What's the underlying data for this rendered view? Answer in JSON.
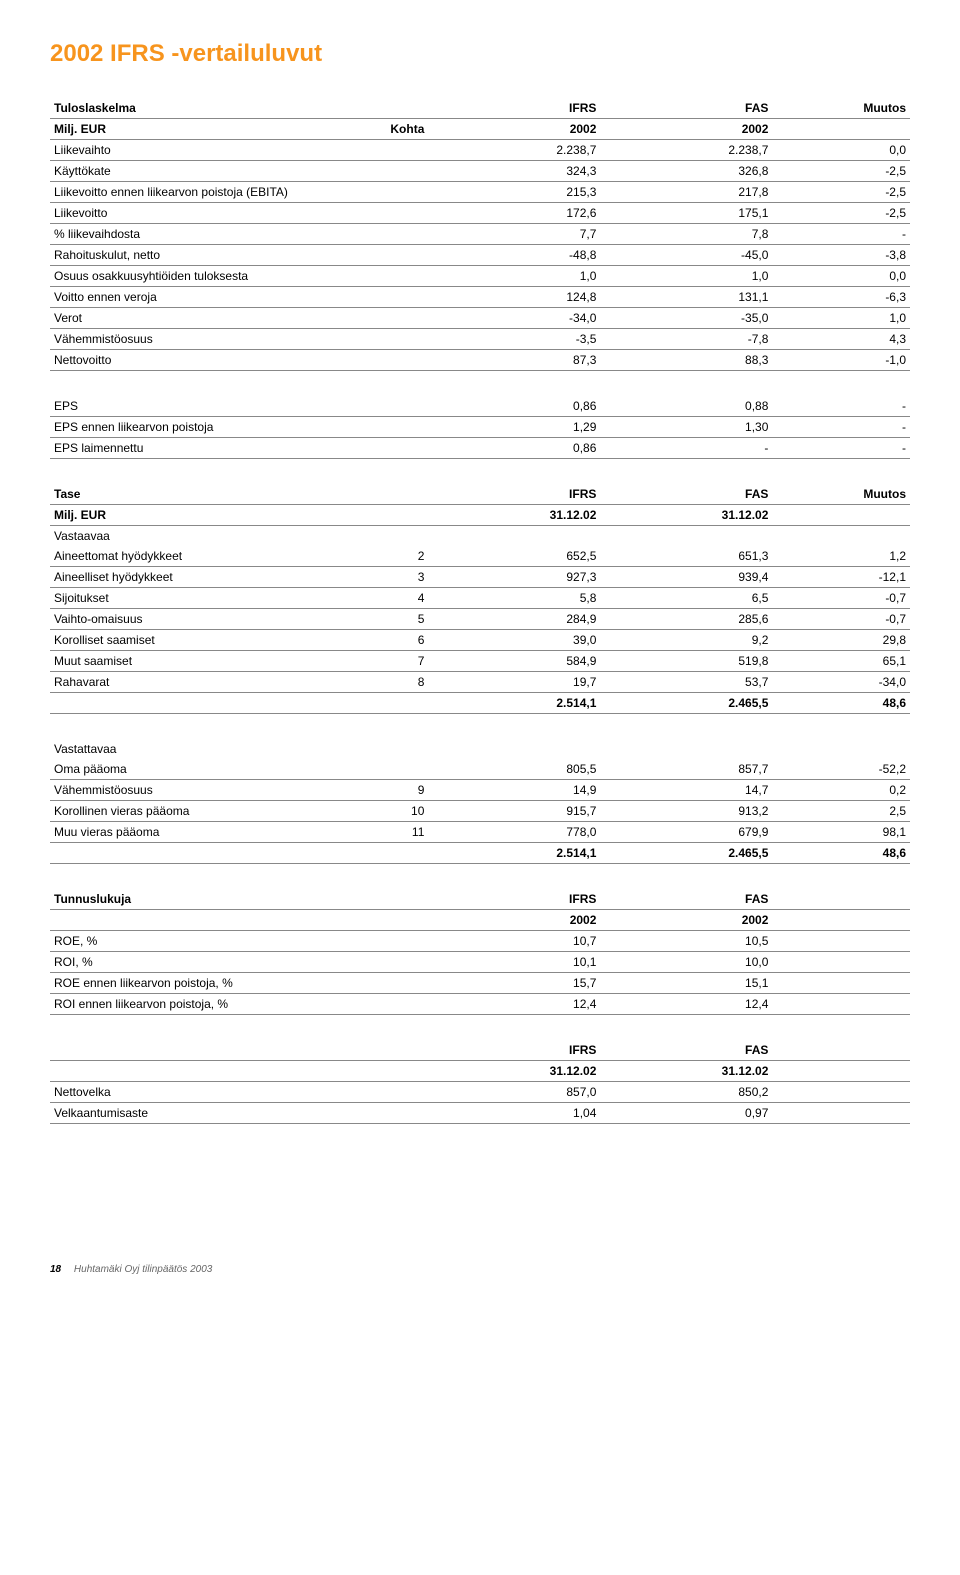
{
  "page_title": "2002 IFRS -vertailuluvut",
  "title_color": "#f7941d",
  "text_color": "#000000",
  "border_color": "#888888",
  "background_color": "#ffffff",
  "font_family": "Arial, Helvetica, sans-serif",
  "font_size_body": 12,
  "font_size_title": 24,
  "income": {
    "head": {
      "c0": "Tuloslaskelma",
      "c1": "",
      "c2": "IFRS",
      "c3": "FAS",
      "c4": "Muutos"
    },
    "sub": {
      "c0": "Milj. EUR",
      "c1": "Kohta",
      "c2": "2002",
      "c3": "2002",
      "c4": ""
    },
    "rows": [
      {
        "label": "Liikevaihto",
        "k": "",
        "a": "2.238,7",
        "b": "2.238,7",
        "c": "0,0"
      },
      {
        "label": "Käyttökate",
        "k": "",
        "a": "324,3",
        "b": "326,8",
        "c": "-2,5"
      },
      {
        "label": "Liikevoitto ennen liikearvon poistoja (EBITA)",
        "k": "",
        "a": "215,3",
        "b": "217,8",
        "c": "-2,5"
      },
      {
        "label": "Liikevoitto",
        "k": "",
        "a": "172,6",
        "b": "175,1",
        "c": "-2,5"
      },
      {
        "label": "% liikevaihdosta",
        "k": "",
        "a": "7,7",
        "b": "7,8",
        "c": "-"
      },
      {
        "label": "Rahoituskulut, netto",
        "k": "",
        "a": "-48,8",
        "b": "-45,0",
        "c": "-3,8"
      },
      {
        "label": "Osuus osakkuusyhtiöiden tuloksesta",
        "k": "",
        "a": "1,0",
        "b": "1,0",
        "c": "0,0"
      },
      {
        "label": "Voitto ennen veroja",
        "k": "",
        "a": "124,8",
        "b": "131,1",
        "c": "-6,3"
      },
      {
        "label": "Verot",
        "k": "",
        "a": "-34,0",
        "b": "-35,0",
        "c": "1,0"
      },
      {
        "label": "Vähemmistöosuus",
        "k": "",
        "a": "-3,5",
        "b": "-7,8",
        "c": "4,3"
      },
      {
        "label": "Nettovoitto",
        "k": "",
        "a": "87,3",
        "b": "88,3",
        "c": "-1,0"
      }
    ]
  },
  "eps": {
    "rows": [
      {
        "label": "EPS",
        "k": "",
        "a": "0,86",
        "b": "0,88",
        "c": "-"
      },
      {
        "label": "EPS ennen liikearvon poistoja",
        "k": "",
        "a": "1,29",
        "b": "1,30",
        "c": "-"
      },
      {
        "label": "EPS laimennettu",
        "k": "",
        "a": "0,86",
        "b": "-",
        "c": "-"
      }
    ]
  },
  "balance": {
    "head": {
      "c0": "Tase",
      "c1": "",
      "c2": "IFRS",
      "c3": "FAS",
      "c4": "Muutos"
    },
    "sub": {
      "c0": "Milj. EUR",
      "c1": "",
      "c2": "31.12.02",
      "c3": "31.12.02",
      "c4": ""
    },
    "assets_title": "Vastaavaa",
    "assets": [
      {
        "label": "Aineettomat hyödykkeet",
        "k": "2",
        "a": "652,5",
        "b": "651,3",
        "c": "1,2"
      },
      {
        "label": "Aineelliset hyödykkeet",
        "k": "3",
        "a": "927,3",
        "b": "939,4",
        "c": "-12,1"
      },
      {
        "label": "Sijoitukset",
        "k": "4",
        "a": "5,8",
        "b": "6,5",
        "c": "-0,7"
      },
      {
        "label": "Vaihto-omaisuus",
        "k": "5",
        "a": "284,9",
        "b": "285,6",
        "c": "-0,7"
      },
      {
        "label": "Korolliset saamiset",
        "k": "6",
        "a": "39,0",
        "b": "9,2",
        "c": "29,8"
      },
      {
        "label": "Muut saamiset",
        "k": "7",
        "a": "584,9",
        "b": "519,8",
        "c": "65,1"
      },
      {
        "label": "Rahavarat",
        "k": "8",
        "a": "19,7",
        "b": "53,7",
        "c": "-34,0"
      }
    ],
    "assets_total": {
      "label": "",
      "k": "",
      "a": "2.514,1",
      "b": "2.465,5",
      "c": "48,6"
    },
    "liab_title": "Vastattavaa",
    "liab": [
      {
        "label": "Oma pääoma",
        "k": "",
        "a": "805,5",
        "b": "857,7",
        "c": "-52,2"
      },
      {
        "label": "Vähemmistöosuus",
        "k": "9",
        "a": "14,9",
        "b": "14,7",
        "c": "0,2"
      },
      {
        "label": "Korollinen vieras pääoma",
        "k": "10",
        "a": "915,7",
        "b": "913,2",
        "c": "2,5"
      },
      {
        "label": "Muu vieras pääoma",
        "k": "11",
        "a": "778,0",
        "b": "679,9",
        "c": "98,1"
      }
    ],
    "liab_total": {
      "label": "",
      "k": "",
      "a": "2.514,1",
      "b": "2.465,5",
      "c": "48,6"
    }
  },
  "ratios": {
    "head": {
      "c0": "Tunnuslukuja",
      "c1": "",
      "c2": "IFRS",
      "c3": "FAS",
      "c4": ""
    },
    "sub": {
      "c0": "",
      "c1": "",
      "c2": "2002",
      "c3": "2002",
      "c4": ""
    },
    "rows": [
      {
        "label": "ROE, %",
        "k": "",
        "a": "10,7",
        "b": "10,5",
        "c": ""
      },
      {
        "label": "ROI, %",
        "k": "",
        "a": "10,1",
        "b": "10,0",
        "c": ""
      },
      {
        "label": "ROE ennen liikearvon poistoja, %",
        "k": "",
        "a": "15,7",
        "b": "15,1",
        "c": ""
      },
      {
        "label": "ROI ennen liikearvon poistoja, %",
        "k": "",
        "a": "12,4",
        "b": "12,4",
        "c": ""
      }
    ]
  },
  "netdebt": {
    "head": {
      "c0": "",
      "c1": "",
      "c2": "IFRS",
      "c3": "FAS",
      "c4": ""
    },
    "sub": {
      "c0": "",
      "c1": "",
      "c2": "31.12.02",
      "c3": "31.12.02",
      "c4": ""
    },
    "rows": [
      {
        "label": "Nettovelka",
        "k": "",
        "a": "857,0",
        "b": "850,2",
        "c": ""
      },
      {
        "label": "Velkaantumisaste",
        "k": "",
        "a": "1,04",
        "b": "0,97",
        "c": ""
      }
    ]
  },
  "footer": {
    "page": "18",
    "text": "Huhtamäki Oyj tilinpäätös 2003"
  }
}
